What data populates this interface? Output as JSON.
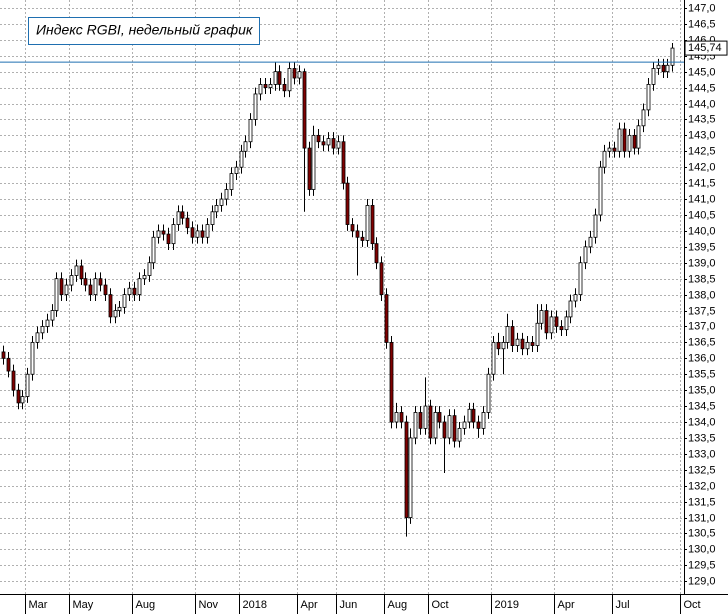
{
  "chart_data": {
    "type": "candlestick",
    "title": "Индекс RGBI, недельный график",
    "categories": [
      null,
      null,
      null,
      null,
      null,
      "Mar",
      null,
      null,
      null,
      null,
      null,
      null,
      null,
      null,
      "May",
      null,
      null,
      null,
      null,
      null,
      null,
      null,
      null,
      null,
      null,
      null,
      null,
      "Aug",
      null,
      null,
      null,
      null,
      null,
      null,
      null,
      null,
      null,
      null,
      null,
      null,
      "Nov",
      null,
      null,
      null,
      null,
      null,
      null,
      null,
      null,
      "2018",
      null,
      null,
      null,
      null,
      null,
      null,
      null,
      null,
      null,
      null,
      null,
      "Apr",
      null,
      null,
      null,
      null,
      null,
      null,
      null,
      "Jun",
      null,
      null,
      null,
      null,
      null,
      null,
      null,
      null,
      null,
      "Aug",
      null,
      null,
      null,
      null,
      null,
      null,
      null,
      null,
      "Oct",
      null,
      null,
      null,
      null,
      null,
      null,
      null,
      null,
      null,
      null,
      null,
      null,
      "2019",
      null,
      null,
      null,
      null,
      null,
      null,
      null,
      null,
      null,
      null,
      null,
      null,
      "Apr",
      null,
      null,
      null,
      null,
      null,
      null,
      null,
      null,
      null,
      null,
      null,
      "Jul",
      null,
      null,
      null,
      null,
      null,
      null,
      null,
      null,
      null,
      null,
      null,
      null,
      null,
      "Oct"
    ],
    "open": [
      136.2,
      136.0,
      135.6,
      135.0,
      134.6,
      134.8,
      135.5,
      136.5,
      136.8,
      137.0,
      137.2,
      137.5,
      138.5,
      138.0,
      138.3,
      138.6,
      138.9,
      138.5,
      138.3,
      138.0,
      138.5,
      138.3,
      138.0,
      137.3,
      137.5,
      137.6,
      138.0,
      138.2,
      138.0,
      138.5,
      138.6,
      139.0,
      139.8,
      140.0,
      139.9,
      139.6,
      140.2,
      140.6,
      140.4,
      140.1,
      139.8,
      140.0,
      139.8,
      140.2,
      140.6,
      140.8,
      141.0,
      141.3,
      141.8,
      142.0,
      142.5,
      142.8,
      143.5,
      144.3,
      144.6,
      144.5,
      144.6,
      145.0,
      144.6,
      144.4,
      145.1,
      144.8,
      145.0,
      142.6,
      141.3,
      143.0,
      142.8,
      142.7,
      142.9,
      142.6,
      142.8,
      141.5,
      140.2,
      140.0,
      139.8,
      139.7,
      140.8,
      139.6,
      139.0,
      138.0,
      136.5,
      134.0,
      134.3,
      134.0,
      131.0,
      133.5,
      134.3,
      133.8,
      134.5,
      133.5,
      134.3,
      134.0,
      133.5,
      134.2,
      133.4,
      133.8,
      134.0,
      134.4,
      134.0,
      133.8,
      134.3,
      135.5,
      136.5,
      136.3,
      136.5,
      137.0,
      136.4,
      136.6,
      136.3,
      136.5,
      136.4,
      137.1,
      137.5,
      136.8,
      137.3,
      137.0,
      136.9,
      137.3,
      137.8,
      138.0,
      139.0,
      139.5,
      139.8,
      140.5,
      142.0,
      142.5,
      142.6,
      142.5,
      143.2,
      142.5,
      143.0,
      142.6,
      143.3,
      143.8,
      144.6,
      145.1,
      145.2,
      145.0,
      145.2,
      null,
      null
    ],
    "high": [
      136.4,
      136.2,
      135.8,
      135.2,
      135.0,
      135.7,
      136.7,
      137.0,
      137.2,
      137.4,
      137.7,
      138.7,
      138.7,
      138.5,
      138.8,
      139.1,
      139.1,
      138.7,
      138.5,
      138.7,
      138.7,
      138.5,
      138.2,
      137.7,
      137.8,
      138.2,
      138.4,
      138.4,
      138.7,
      138.8,
      139.2,
      140.0,
      140.2,
      140.2,
      140.1,
      140.4,
      140.8,
      140.8,
      140.6,
      140.3,
      140.2,
      140.2,
      140.4,
      140.8,
      141.0,
      141.2,
      141.5,
      142.0,
      142.2,
      142.7,
      143.0,
      143.7,
      144.5,
      144.8,
      144.8,
      144.8,
      145.3,
      145.2,
      144.8,
      145.3,
      145.3,
      145.2,
      145.1,
      142.8,
      143.3,
      143.2,
      143.0,
      143.1,
      143.1,
      143.0,
      143.0,
      141.7,
      140.4,
      140.2,
      140.0,
      141.0,
      141.0,
      139.8,
      139.2,
      138.2,
      136.7,
      134.6,
      134.5,
      134.2,
      133.8,
      134.5,
      134.5,
      135.4,
      134.7,
      134.5,
      134.5,
      134.2,
      134.4,
      134.4,
      134.0,
      134.2,
      134.6,
      134.6,
      134.2,
      134.5,
      135.7,
      136.7,
      136.8,
      136.7,
      137.4,
      137.2,
      136.8,
      136.8,
      136.7,
      136.7,
      137.7,
      137.7,
      137.7,
      137.5,
      137.5,
      137.2,
      137.5,
      138.0,
      138.2,
      139.2,
      139.7,
      140.0,
      140.7,
      142.2,
      142.7,
      142.8,
      142.8,
      143.4,
      143.4,
      143.2,
      143.2,
      143.5,
      144.0,
      144.8,
      145.3,
      145.4,
      145.4,
      145.4,
      145.9,
      null,
      null
    ],
    "low": [
      135.8,
      135.4,
      134.8,
      134.4,
      134.4,
      134.6,
      135.3,
      136.3,
      136.6,
      136.8,
      137.0,
      137.3,
      137.8,
      137.8,
      138.1,
      138.4,
      138.3,
      138.1,
      137.8,
      137.8,
      138.1,
      137.8,
      137.1,
      137.1,
      137.3,
      137.4,
      137.8,
      137.8,
      137.8,
      138.3,
      138.4,
      138.8,
      139.6,
      139.7,
      139.4,
      139.4,
      140.0,
      140.2,
      139.9,
      139.6,
      139.6,
      139.6,
      139.6,
      140.0,
      140.4,
      140.6,
      140.8,
      141.1,
      141.6,
      141.8,
      142.3,
      142.6,
      143.3,
      144.1,
      144.3,
      144.3,
      144.4,
      144.4,
      144.2,
      144.2,
      144.6,
      144.6,
      140.6,
      141.1,
      141.1,
      142.6,
      142.5,
      142.5,
      142.4,
      142.4,
      141.3,
      140.0,
      139.8,
      138.6,
      139.5,
      139.5,
      139.4,
      138.8,
      137.8,
      136.3,
      133.8,
      133.8,
      133.8,
      130.4,
      130.8,
      133.3,
      133.6,
      133.6,
      133.3,
      133.3,
      133.8,
      132.4,
      133.3,
      133.2,
      133.2,
      133.6,
      133.8,
      133.8,
      133.5,
      133.6,
      134.1,
      135.3,
      136.1,
      135.5,
      136.3,
      136.2,
      136.2,
      136.1,
      136.1,
      136.2,
      136.2,
      136.9,
      136.6,
      136.6,
      136.8,
      136.7,
      136.7,
      137.1,
      137.6,
      137.8,
      138.8,
      139.3,
      139.6,
      140.3,
      141.8,
      142.3,
      142.3,
      142.3,
      142.3,
      142.3,
      142.4,
      142.4,
      143.1,
      143.6,
      144.4,
      144.9,
      144.8,
      144.8,
      145.0,
      null,
      null
    ],
    "close": [
      136.0,
      135.6,
      135.0,
      134.6,
      134.8,
      135.5,
      136.5,
      136.8,
      137.0,
      137.2,
      137.5,
      138.5,
      138.0,
      138.3,
      138.6,
      138.9,
      138.5,
      138.3,
      138.0,
      138.5,
      138.3,
      138.0,
      137.3,
      137.5,
      137.6,
      138.0,
      138.2,
      138.0,
      138.5,
      138.6,
      139.0,
      139.8,
      140.0,
      139.9,
      139.6,
      140.2,
      140.6,
      140.4,
      140.1,
      139.8,
      140.0,
      139.8,
      140.2,
      140.6,
      140.8,
      141.0,
      141.3,
      141.8,
      142.0,
      142.5,
      142.8,
      143.5,
      144.3,
      144.6,
      144.5,
      144.6,
      145.0,
      144.6,
      144.4,
      145.1,
      144.8,
      145.0,
      142.6,
      141.3,
      143.0,
      142.8,
      142.7,
      142.9,
      142.6,
      142.8,
      141.5,
      140.2,
      140.0,
      139.8,
      139.7,
      140.8,
      139.6,
      139.0,
      138.0,
      136.5,
      134.0,
      134.3,
      134.0,
      131.0,
      133.5,
      134.3,
      133.8,
      134.5,
      133.5,
      134.3,
      134.0,
      133.5,
      134.2,
      133.4,
      133.8,
      134.0,
      134.4,
      134.0,
      133.8,
      134.3,
      135.5,
      136.5,
      136.3,
      136.5,
      137.0,
      136.4,
      136.6,
      136.3,
      136.5,
      136.4,
      137.1,
      137.5,
      136.8,
      137.3,
      137.0,
      136.9,
      137.3,
      137.8,
      138.0,
      139.0,
      139.5,
      139.8,
      140.5,
      142.0,
      142.5,
      142.6,
      142.5,
      143.2,
      142.5,
      143.0,
      142.6,
      143.3,
      143.8,
      144.6,
      145.1,
      145.2,
      145.0,
      145.2,
      145.74,
      null,
      null
    ],
    "up_color": "#ffffff",
    "down_color": "#800000",
    "last_price": {
      "value": 145.74,
      "label": "145,74"
    },
    "reference_line": {
      "value": 145.3,
      "color": "#1f6fb0"
    },
    "ylim": [
      128.6,
      147.25
    ],
    "yticks": [
      {
        "value": 129.0,
        "label": "129,0"
      },
      {
        "value": 129.5,
        "label": "129,5"
      },
      {
        "value": 130.0,
        "label": "130,0"
      },
      {
        "value": 130.5,
        "label": "130,5"
      },
      {
        "value": 131.0,
        "label": "131,0"
      },
      {
        "value": 131.5,
        "label": "131,5"
      },
      {
        "value": 132.0,
        "label": "132,0"
      },
      {
        "value": 132.5,
        "label": "132,5"
      },
      {
        "value": 133.0,
        "label": "133,0"
      },
      {
        "value": 133.5,
        "label": "133,5"
      },
      {
        "value": 134.0,
        "label": "134,0"
      },
      {
        "value": 134.5,
        "label": "134,5"
      },
      {
        "value": 135.0,
        "label": "135,0"
      },
      {
        "value": 135.5,
        "label": "135,5"
      },
      {
        "value": 136.0,
        "label": "136,0"
      },
      {
        "value": 136.5,
        "label": "136,5"
      },
      {
        "value": 137.0,
        "label": "137,0"
      },
      {
        "value": 137.5,
        "label": "137,5"
      },
      {
        "value": 138.0,
        "label": "138,0"
      },
      {
        "value": 138.5,
        "label": "138,5"
      },
      {
        "value": 139.0,
        "label": "139,0"
      },
      {
        "value": 139.5,
        "label": "139,5"
      },
      {
        "value": 140.0,
        "label": "140,0"
      },
      {
        "value": 140.5,
        "label": "140,5"
      },
      {
        "value": 141.0,
        "label": "141,0"
      },
      {
        "value": 141.5,
        "label": "141,5"
      },
      {
        "value": 142.0,
        "label": "142,0"
      },
      {
        "value": 142.5,
        "label": "142,5"
      },
      {
        "value": 143.0,
        "label": "143,0"
      },
      {
        "value": 143.5,
        "label": "143,5"
      },
      {
        "value": 144.0,
        "label": "144,0"
      },
      {
        "value": 144.5,
        "label": "144,5"
      },
      {
        "value": 145.0,
        "label": "145,0"
      },
      {
        "value": 145.5,
        "label": "145,5"
      },
      {
        "value": 146.0,
        "label": "146,0"
      },
      {
        "value": 146.5,
        "label": "146,5"
      },
      {
        "value": 147.0,
        "label": "147,0"
      }
    ],
    "grid": true
  }
}
